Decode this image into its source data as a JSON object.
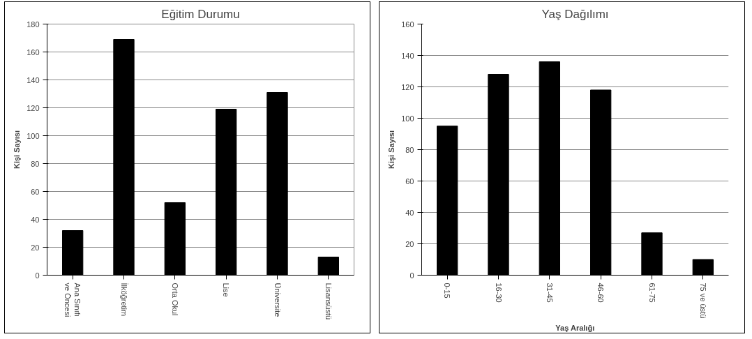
{
  "chart_data": [
    {
      "type": "bar",
      "title": "Eğitim Durumu",
      "ylabel": "Kişi Sayısı",
      "categories": [
        "Ana Sınıfı\nve Öncesi",
        "İlköğretim",
        "Orta Okul",
        "Lise",
        "Üniversite",
        "Lisansüstü"
      ],
      "values": [
        32,
        169,
        52,
        119,
        131,
        13
      ],
      "color": "#000000",
      "ylim": [
        0,
        180
      ],
      "yticks": [
        0,
        20,
        40,
        60,
        80,
        100,
        120,
        140,
        160,
        180
      ],
      "grid": "y"
    },
    {
      "type": "bar",
      "title": "Yaş Dağılımı",
      "ylabel": "Kişi Sayısı",
      "xlabel": "Yaş Aralığı",
      "categories": [
        "0-15",
        "16-30",
        "31-45",
        "46-60",
        "61-75",
        "75 ve üstü"
      ],
      "values": [
        95,
        128,
        136,
        118,
        27,
        10
      ],
      "color": "#000000",
      "ylim": [
        0,
        160
      ],
      "yticks": [
        0,
        20,
        40,
        60,
        80,
        100,
        120,
        140,
        160
      ],
      "grid": "y"
    }
  ]
}
